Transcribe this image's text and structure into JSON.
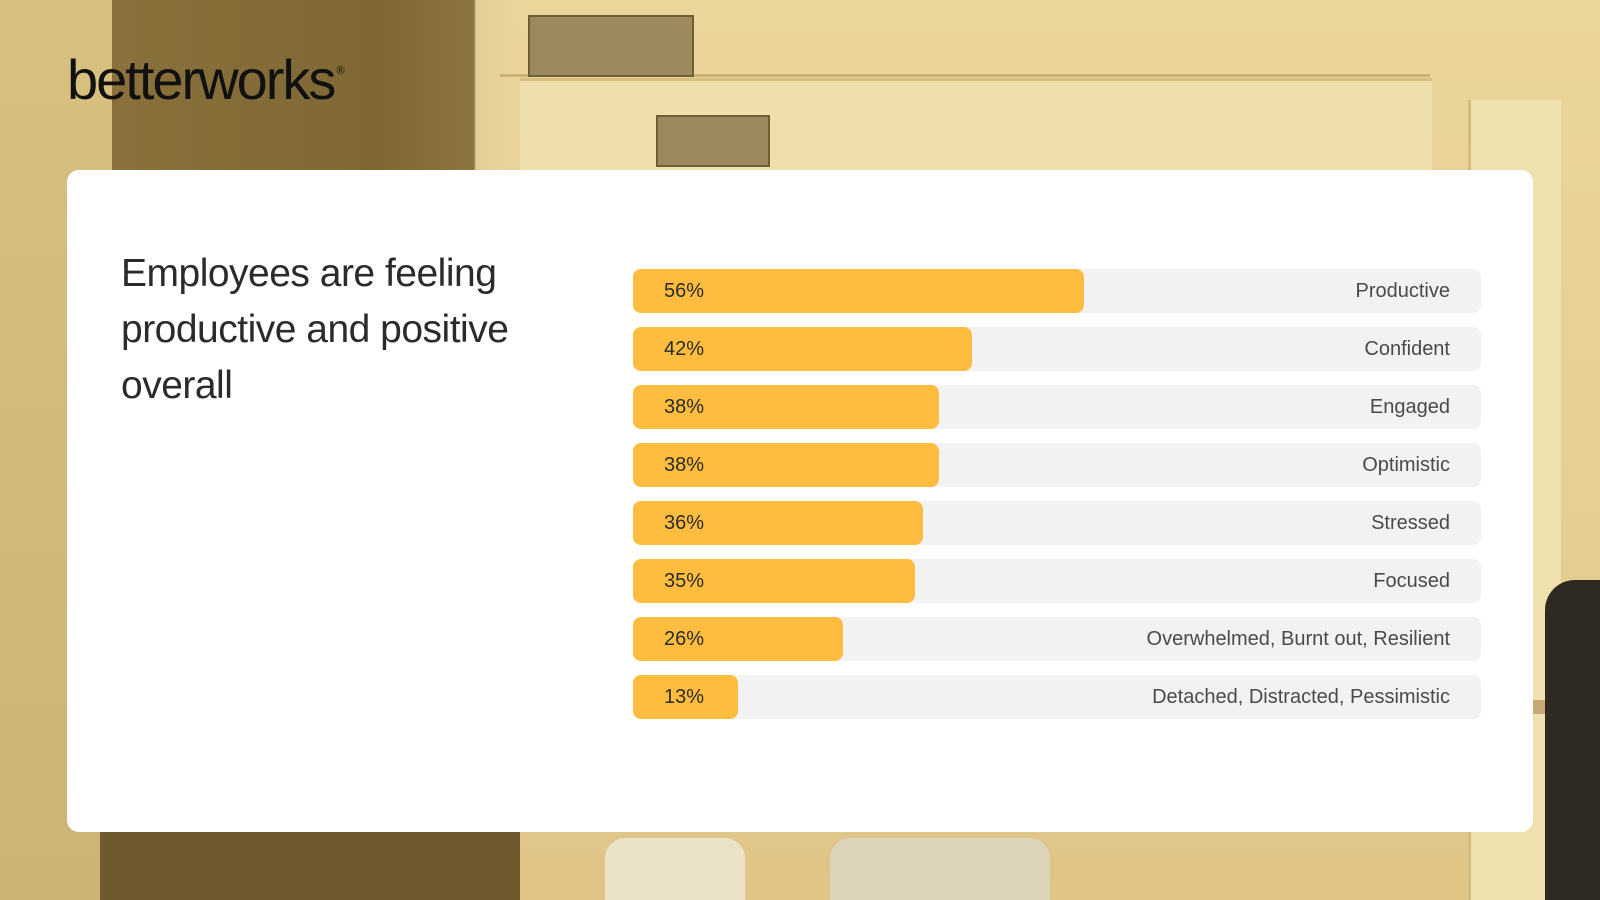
{
  "brand": {
    "name": "betterworks",
    "registered_mark": "®"
  },
  "headline": "Employees are feeling productive and positive overall",
  "colors": {
    "bar_fill": "#FFBD3F",
    "bar_track": "#F2F2F2",
    "card_background": "#FFFFFF"
  },
  "chart_data": {
    "type": "bar",
    "orientation": "horizontal",
    "categories": [
      "Productive",
      "Confident",
      "Engaged",
      "Optimistic",
      "Stressed",
      "Focused",
      "Overwhelmed, Burnt out, Resilient",
      "Detached, Distracted, Pessimistic"
    ],
    "values": [
      56,
      42,
      38,
      38,
      36,
      35,
      26,
      13
    ],
    "value_labels": [
      "56%",
      "42%",
      "38%",
      "38%",
      "36%",
      "35%",
      "26%",
      "13%"
    ],
    "xlim": [
      0,
      100
    ],
    "unit": "%",
    "grid": false
  }
}
